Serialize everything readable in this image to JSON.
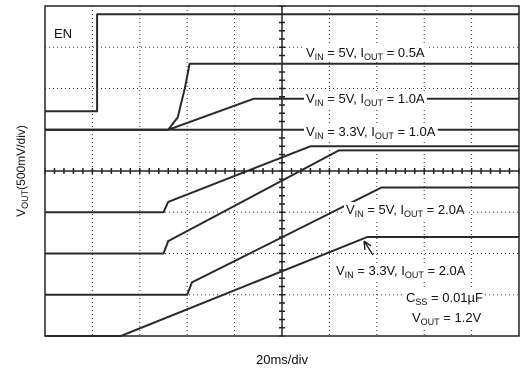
{
  "chart_data": {
    "type": "line",
    "xlabel": "20ms/div",
    "ylabel_main": "V",
    "ylabel_sub": "OUT",
    "ylabel_rest": "(500mV/div)",
    "divisions": {
      "x": 10,
      "y": 8
    },
    "xlim": [
      0,
      10
    ],
    "ylim": [
      0,
      8
    ],
    "enable_label": "EN",
    "enable": {
      "name": "EN",
      "points": [
        [
          0,
          5.45
        ],
        [
          1.1,
          5.45
        ],
        [
          1.1,
          7.8
        ],
        [
          10,
          7.8
        ]
      ]
    },
    "series": [
      {
        "label": {
          "v": "V",
          "vsub": "IN",
          "vtext": " = 5V, I",
          "isub": "OUT",
          "itext": " = 0.5A"
        },
        "points": [
          [
            0,
            5.0
          ],
          [
            2.6,
            5.0
          ],
          [
            2.8,
            5.3
          ],
          [
            2.95,
            6.0
          ],
          [
            3.05,
            6.6
          ],
          [
            3.2,
            6.6
          ],
          [
            10,
            6.6
          ]
        ]
      },
      {
        "label": {
          "v": "V",
          "vsub": "IN",
          "vtext": " = 5V, I",
          "isub": "OUT",
          "itext": " = 1.0A"
        },
        "points": [
          [
            0,
            5.0
          ],
          [
            2.6,
            5.0
          ],
          [
            4.4,
            5.75
          ],
          [
            5.6,
            5.75
          ],
          [
            10,
            5.75
          ]
        ]
      },
      {
        "label": {
          "v": "V",
          "vsub": "IN",
          "vtext": " = 3.3V, I",
          "isub": "OUT",
          "itext": " = 1.0A"
        },
        "points": [
          [
            0,
            5.0
          ],
          [
            2.6,
            5.0
          ],
          [
            4.7,
            5.0
          ],
          [
            10,
            5.0
          ]
        ]
      },
      {
        "label": {
          "v": "V",
          "vsub": "IN",
          "vtext": " = 5V, I",
          "isub": "OUT",
          "itext": " = 2.0A"
        },
        "points": [
          [
            0,
            3.0
          ],
          [
            2.5,
            3.0
          ],
          [
            2.6,
            3.25
          ],
          [
            5.6,
            4.6
          ],
          [
            7.45,
            4.6
          ],
          [
            10,
            4.6
          ]
        ]
      },
      {
        "label": {
          "v": "V",
          "vsub": "IN",
          "vtext": " = 3.3V, I",
          "isub": "OUT",
          "itext": " = 2.0A"
        },
        "points": [
          [
            0,
            2.0
          ],
          [
            2.5,
            2.0
          ],
          [
            2.6,
            2.3
          ],
          [
            6.2,
            4.5
          ],
          [
            10,
            4.5
          ]
        ]
      },
      {
        "label": null,
        "points": [
          [
            0,
            1.0
          ],
          [
            3.0,
            1.0
          ],
          [
            3.1,
            1.3
          ],
          [
            7.1,
            3.6
          ],
          [
            10,
            3.6
          ]
        ]
      },
      {
        "label": null,
        "points": [
          [
            0,
            0.0
          ],
          [
            1.6,
            0.0
          ],
          [
            6.8,
            2.4
          ],
          [
            10,
            2.4
          ]
        ]
      }
    ],
    "annotations": {
      "css": {
        "main": "C",
        "sub": "SS",
        "text": " = 0.01µF"
      },
      "vout": {
        "main": "V",
        "sub": "OUT",
        "text": " = 1.2V"
      }
    }
  }
}
